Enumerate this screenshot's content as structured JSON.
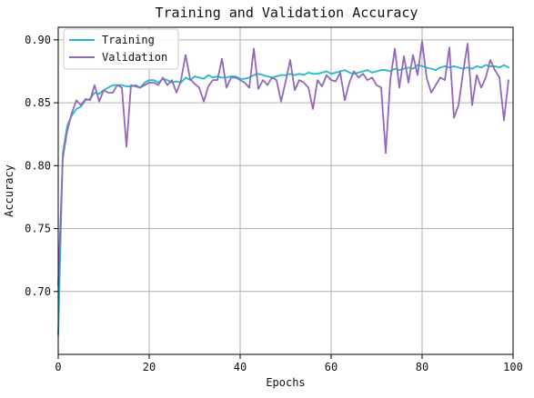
{
  "chart_data": {
    "type": "line",
    "title": "Training and Validation Accuracy",
    "xlabel": "Epochs",
    "ylabel": "Accuracy",
    "xlim": [
      0,
      100
    ],
    "ylim": [
      0.65,
      0.91
    ],
    "xticks": [
      0,
      20,
      40,
      60,
      80,
      100
    ],
    "yticks": [
      0.7,
      0.75,
      0.8,
      0.85,
      0.9
    ],
    "xtick_labels": [
      "0",
      "20",
      "40",
      "60",
      "80",
      "100"
    ],
    "ytick_labels": [
      "0.70",
      "0.75",
      "0.80",
      "0.85",
      "0.90"
    ],
    "grid": true,
    "legend_position": "top-left",
    "series": [
      {
        "name": "Training",
        "color": "#17becf",
        "x": [
          0,
          1,
          2,
          3,
          4,
          5,
          6,
          7,
          8,
          9,
          10,
          11,
          12,
          13,
          14,
          15,
          16,
          17,
          18,
          19,
          20,
          21,
          22,
          23,
          24,
          25,
          26,
          27,
          28,
          29,
          30,
          31,
          32,
          33,
          34,
          35,
          36,
          37,
          38,
          39,
          40,
          41,
          42,
          43,
          44,
          45,
          46,
          47,
          48,
          49,
          50,
          51,
          52,
          53,
          54,
          55,
          56,
          57,
          58,
          59,
          60,
          61,
          62,
          63,
          64,
          65,
          66,
          67,
          68,
          69,
          70,
          71,
          72,
          73,
          74,
          75,
          76,
          77,
          78,
          79,
          80,
          81,
          82,
          83,
          84,
          85,
          86,
          87,
          88,
          89,
          90,
          91,
          92,
          93,
          94,
          95,
          96,
          97,
          98,
          99
        ],
        "y": [
          0.665,
          0.81,
          0.832,
          0.84,
          0.845,
          0.847,
          0.852,
          0.853,
          0.858,
          0.857,
          0.86,
          0.862,
          0.864,
          0.864,
          0.864,
          0.863,
          0.863,
          0.864,
          0.862,
          0.866,
          0.868,
          0.868,
          0.866,
          0.869,
          0.868,
          0.866,
          0.867,
          0.866,
          0.87,
          0.868,
          0.871,
          0.87,
          0.869,
          0.872,
          0.87,
          0.871,
          0.87,
          0.87,
          0.871,
          0.871,
          0.869,
          0.869,
          0.87,
          0.872,
          0.873,
          0.872,
          0.871,
          0.87,
          0.871,
          0.872,
          0.872,
          0.873,
          0.872,
          0.873,
          0.872,
          0.874,
          0.873,
          0.873,
          0.874,
          0.875,
          0.873,
          0.874,
          0.875,
          0.876,
          0.874,
          0.873,
          0.874,
          0.875,
          0.876,
          0.874,
          0.875,
          0.876,
          0.876,
          0.875,
          0.877,
          0.876,
          0.877,
          0.878,
          0.877,
          0.88,
          0.879,
          0.878,
          0.877,
          0.876,
          0.878,
          0.879,
          0.878,
          0.879,
          0.878,
          0.877,
          0.878,
          0.877,
          0.879,
          0.878,
          0.88,
          0.879,
          0.879,
          0.878,
          0.88,
          0.878
        ]
      },
      {
        "name": "Validation",
        "color": "#9467bd",
        "x": [
          0,
          1,
          2,
          3,
          4,
          5,
          6,
          7,
          8,
          9,
          10,
          11,
          12,
          13,
          14,
          15,
          16,
          17,
          18,
          19,
          20,
          21,
          22,
          23,
          24,
          25,
          26,
          27,
          28,
          29,
          30,
          31,
          32,
          33,
          34,
          35,
          36,
          37,
          38,
          39,
          40,
          41,
          42,
          43,
          44,
          45,
          46,
          47,
          48,
          49,
          50,
          51,
          52,
          53,
          54,
          55,
          56,
          57,
          58,
          59,
          60,
          61,
          62,
          63,
          64,
          65,
          66,
          67,
          68,
          69,
          70,
          71,
          72,
          73,
          74,
          75,
          76,
          77,
          78,
          79,
          80,
          81,
          82,
          83,
          84,
          85,
          86,
          87,
          88,
          89,
          90,
          91,
          92,
          93,
          94,
          95,
          96,
          97,
          98,
          99
        ],
        "y": [
          0.705,
          0.806,
          0.828,
          0.842,
          0.852,
          0.848,
          0.853,
          0.852,
          0.864,
          0.851,
          0.86,
          0.858,
          0.858,
          0.864,
          0.862,
          0.815,
          0.864,
          0.863,
          0.862,
          0.864,
          0.866,
          0.866,
          0.864,
          0.87,
          0.864,
          0.868,
          0.858,
          0.868,
          0.888,
          0.869,
          0.865,
          0.862,
          0.851,
          0.863,
          0.868,
          0.868,
          0.885,
          0.862,
          0.87,
          0.87,
          0.868,
          0.866,
          0.862,
          0.893,
          0.861,
          0.868,
          0.864,
          0.87,
          0.868,
          0.851,
          0.867,
          0.884,
          0.86,
          0.868,
          0.866,
          0.862,
          0.845,
          0.868,
          0.863,
          0.872,
          0.868,
          0.867,
          0.874,
          0.852,
          0.866,
          0.875,
          0.87,
          0.873,
          0.868,
          0.87,
          0.864,
          0.862,
          0.81,
          0.868,
          0.893,
          0.862,
          0.887,
          0.866,
          0.888,
          0.872,
          0.899,
          0.87,
          0.858,
          0.864,
          0.87,
          0.868,
          0.894,
          0.838,
          0.848,
          0.874,
          0.897,
          0.848,
          0.872,
          0.862,
          0.87,
          0.884,
          0.876,
          0.87,
          0.836,
          0.868
        ]
      }
    ]
  }
}
